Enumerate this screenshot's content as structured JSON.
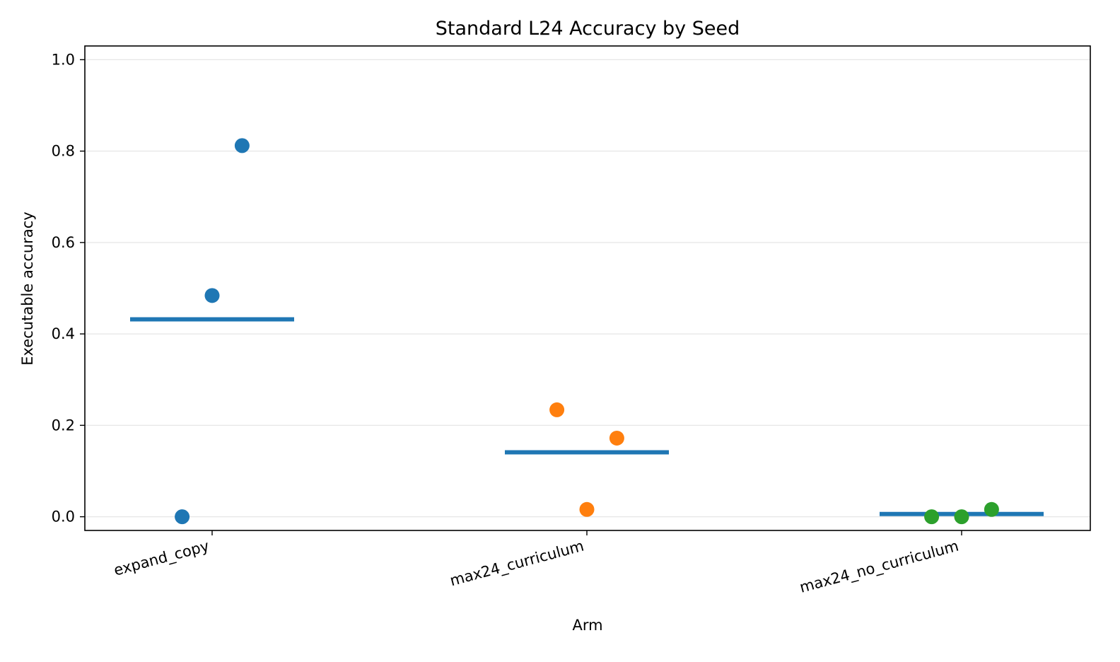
{
  "chart_data": {
    "type": "scatter",
    "title": "Standard L24 Accuracy by Seed",
    "xlabel": "Arm",
    "ylabel": "Executable accuracy",
    "ylim": [
      -0.03,
      1.03
    ],
    "yticks": [
      0.0,
      0.2,
      0.4,
      0.6,
      0.8,
      1.0
    ],
    "ytick_labels": [
      "0.0",
      "0.2",
      "0.4",
      "0.6",
      "0.8",
      "1.0"
    ],
    "grid": "y",
    "categories": [
      "expand_copy",
      "max24_curriculum",
      "max24_no_curriculum"
    ],
    "mean_line_color": "#1f77b4",
    "series": [
      {
        "category": "expand_copy",
        "color": "#1f77b4",
        "points": [
          {
            "jitter": -0.08,
            "value": 0.0
          },
          {
            "jitter": 0.0,
            "value": 0.484
          },
          {
            "jitter": 0.08,
            "value": 0.812
          }
        ],
        "mean": 0.432
      },
      {
        "category": "max24_curriculum",
        "color": "#ff7f0e",
        "points": [
          {
            "jitter": -0.08,
            "value": 0.234
          },
          {
            "jitter": 0.0,
            "value": 0.016
          },
          {
            "jitter": 0.08,
            "value": 0.172
          }
        ],
        "mean": 0.141
      },
      {
        "category": "max24_no_curriculum",
        "color": "#2ca02c",
        "points": [
          {
            "jitter": -0.08,
            "value": 0.0
          },
          {
            "jitter": 0.0,
            "value": 0.0
          },
          {
            "jitter": 0.08,
            "value": 0.016
          }
        ],
        "mean": 0.006
      }
    ]
  }
}
